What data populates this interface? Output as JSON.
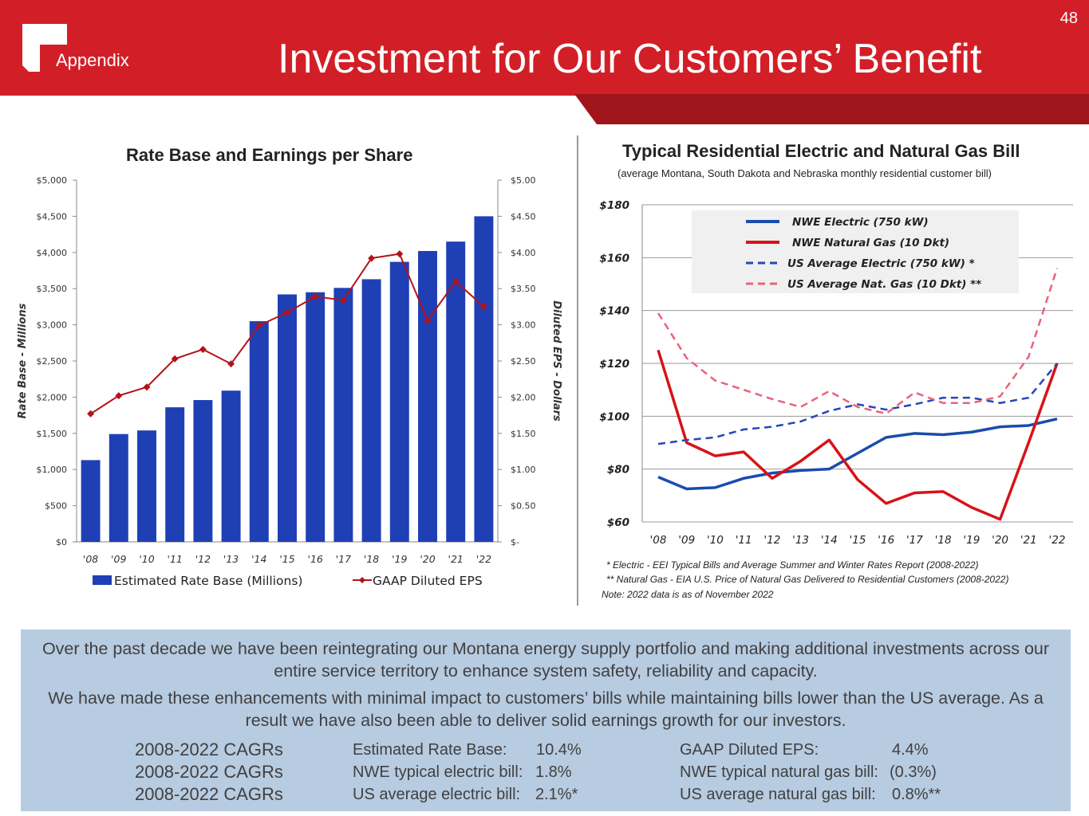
{
  "header": {
    "page_number": "48",
    "section": "Appendix",
    "title": "Investment for Our Customers’ Benefit"
  },
  "colors": {
    "header_red": "#d21f27",
    "stripe_dark_red": "#a0151c",
    "bar_blue": "#1f3fb5",
    "eps_red": "#b3121b",
    "nwe_electric": "#1a4cac",
    "nwe_gas": "#d71318",
    "us_electric": "#2447b8",
    "us_gas": "#e8637a",
    "bottom_box": "#b7cbe1"
  },
  "chart_data": [
    {
      "type": "bar",
      "title": "Rate Base and Earnings per Share",
      "categories": [
        "'08",
        "'09",
        "'10",
        "'11",
        "'12",
        "'13",
        "'14",
        "'15",
        "'16",
        "'17",
        "'18",
        "'19",
        "'20",
        "'21",
        "'22"
      ],
      "ylabel": "Rate Base - Millions",
      "y2label": "Diluted EPS - Dollars",
      "ylim": [
        0,
        5000
      ],
      "y2lim": [
        0,
        5
      ],
      "y_ticks": [
        "$0",
        "$500",
        "$1,000",
        "$1,500",
        "$2,000",
        "$2,500",
        "$3,000",
        "$3,500",
        "$4,000",
        "$4,500",
        "$5,000"
      ],
      "y2_ticks": [
        "$-",
        "$0.50",
        "$1.00",
        "$1.50",
        "$2.00",
        "$2.50",
        "$3.00",
        "$3.50",
        "$4.00",
        "$4.50",
        "$5.00"
      ],
      "series": [
        {
          "name": "Estimated Rate Base (Millions)",
          "type": "bar",
          "axis": "left",
          "values": [
            1130,
            1490,
            1540,
            1860,
            1960,
            2090,
            3050,
            3420,
            3450,
            3510,
            3630,
            3870,
            4020,
            4150,
            4500
          ]
        },
        {
          "name": "GAAP Diluted EPS",
          "type": "line",
          "axis": "right",
          "values": [
            1.77,
            2.02,
            2.14,
            2.53,
            2.66,
            2.46,
            2.99,
            3.17,
            3.39,
            3.34,
            3.92,
            3.98,
            3.06,
            3.6,
            3.25
          ]
        }
      ],
      "grid": false,
      "legend_position": "bottom"
    },
    {
      "type": "line",
      "title": "Typical Residential Electric and Natural Gas Bill",
      "subtitle": "(average Montana, South Dakota and Nebraska monthly residential customer bill)",
      "categories": [
        "'08",
        "'09",
        "'10",
        "'11",
        "'12",
        "'13",
        "'14",
        "'15",
        "'16",
        "'17",
        "'18",
        "'19",
        "'20",
        "'21",
        "'22"
      ],
      "ylim": [
        60,
        180
      ],
      "y_ticks": [
        "$60",
        "$80",
        "$100",
        "$120",
        "$140",
        "$160",
        "$180"
      ],
      "series": [
        {
          "name": "NWE Electric (750 kW)",
          "style": "solid",
          "values": [
            77,
            72.5,
            73,
            76.5,
            78.5,
            79.5,
            80,
            86,
            92,
            93.5,
            93,
            94,
            96,
            96.5,
            99
          ]
        },
        {
          "name": "NWE Natural Gas (10 Dkt)",
          "style": "solid",
          "values": [
            125,
            90,
            85,
            86.5,
            76.5,
            83,
            91,
            76,
            67,
            71,
            71.5,
            65.5,
            61,
            90,
            120
          ]
        },
        {
          "name": "US Average Electric (750 kW) *",
          "style": "dashed",
          "values": [
            89.5,
            91,
            92,
            95,
            96,
            98,
            102,
            104.5,
            102.5,
            104.5,
            107,
            107,
            105,
            107,
            120
          ]
        },
        {
          "name": "US Average Nat. Gas (10 Dkt) **",
          "style": "dashed",
          "values": [
            139,
            122,
            113.5,
            110,
            106.5,
            103.5,
            109.5,
            103.5,
            101,
            109,
            105,
            105,
            107.5,
            122.5,
            156
          ]
        }
      ],
      "grid": true,
      "legend_position": "top-center",
      "notes": [
        "* Electric - EEI Typical Bills and Average Summer and Winter Rates Report (2008-2022)",
        "** Natural Gas - EIA U.S. Price of Natural Gas Delivered to Residential Customers (2008-2022)",
        "Note: 2022 data is as of November 2022"
      ]
    }
  ],
  "summary": {
    "para1": "Over the past decade we have been reintegrating our Montana energy supply portfolio and making additional investments across our entire service territory to enhance system safety, reliability and capacity.",
    "para2": "We have made these enhancements with minimal impact to customers’ bills while maintaining bills lower than the US average. As a result we have also been able to deliver solid earnings growth for our investors.",
    "cagr_rows": [
      {
        "label": "2008-2022 CAGRs",
        "left_name": "Estimated Rate Base:",
        "left_value": "10.4%",
        "right_name": "GAAP Diluted EPS:",
        "right_value": "4.4%"
      },
      {
        "label": "2008-2022 CAGRs",
        "left_name": "NWE typical electric bill:",
        "left_value": "1.8%",
        "right_name": "NWE typical natural gas bill:",
        "right_value": "(0.3%)"
      },
      {
        "label": "2008-2022 CAGRs",
        "left_name": "US average electric bill:",
        "left_value": "2.1%*",
        "right_name": "US average natural gas bill:",
        "right_value": "0.8%**"
      }
    ]
  }
}
